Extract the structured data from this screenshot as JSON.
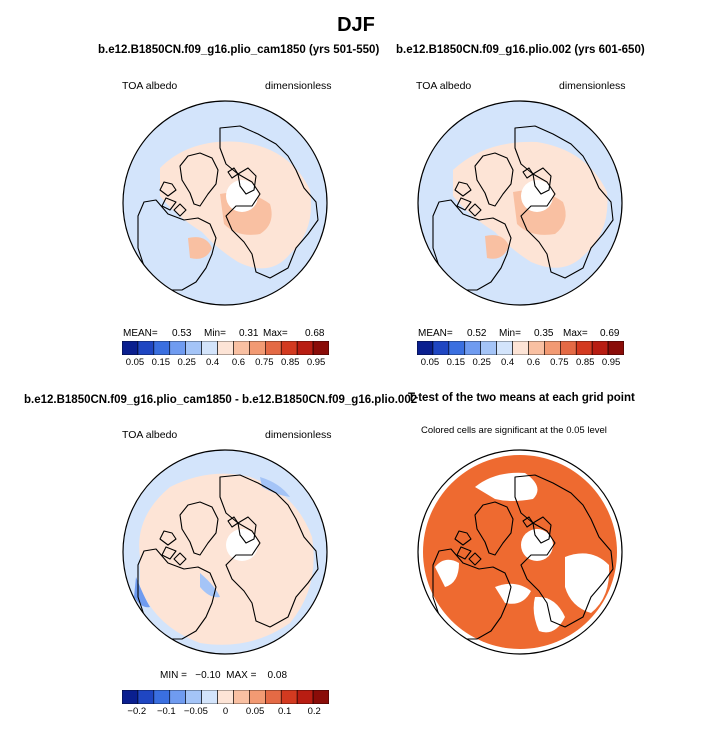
{
  "title": "DJF",
  "colors": {
    "palette": [
      "#0a1f8f",
      "#1f46c2",
      "#3a6fe0",
      "#6f9bf0",
      "#a4c4f7",
      "#d3e4fb",
      "#fde4d6",
      "#f9c0a2",
      "#f29a73",
      "#e46a45",
      "#d33a20",
      "#b81d12",
      "#8a0c08"
    ],
    "ocean": "#d3e4fb",
    "land_warm": "#fde4d6",
    "land_mid": "#f9c0a2",
    "significant": "#ee6a30",
    "hole": "#ffffff"
  },
  "panels": [
    {
      "title": "b.e12.B1850CN.f09_g16.plio_cam1850 (yrs 501-550)",
      "variable": "TOA albedo",
      "units": "dimensionless",
      "stats": {
        "mean_label": "MEAN=",
        "mean": "0.53",
        "min_label": "Min=",
        "min": "0.31",
        "max_label": "Max=",
        "max": "0.68"
      },
      "colorbar_ticks": [
        "0.05",
        "0.15",
        "0.25",
        "0.4",
        "0.6",
        "0.75",
        "0.85",
        "0.95"
      ]
    },
    {
      "title": "b.e12.B1850CN.f09_g16.plio.002 (yrs 601-650)",
      "variable": "TOA albedo",
      "units": "dimensionless",
      "stats": {
        "mean_label": "MEAN=",
        "mean": "0.52",
        "min_label": "Min=",
        "min": "0.35",
        "max_label": "Max=",
        "max": "0.69"
      },
      "colorbar_ticks": [
        "0.05",
        "0.15",
        "0.25",
        "0.4",
        "0.6",
        "0.75",
        "0.85",
        "0.95"
      ]
    },
    {
      "title": "b.e12.B1850CN.f09_g16.plio_cam1850 - b.e12.B1850CN.f09_g16.plio.002",
      "variable": "TOA albedo",
      "units": "dimensionless",
      "stats_text": "MIN =   −0.10  MAX =    0.08",
      "colorbar_ticks": [
        "−0.2",
        "−0.1",
        "−0.05",
        "0",
        "0.05",
        "0.1",
        "0.2"
      ]
    },
    {
      "title": "T-test of the two means at each grid point",
      "subtitle": "Colored cells are significant at the 0.05 level"
    }
  ],
  "chart_data": [
    {
      "type": "heatmap",
      "projection": "north polar stereographic",
      "title": "b.e12.B1850CN.f09_g16.plio_cam1850 (yrs 501-550)",
      "variable": "TOA albedo",
      "units": "dimensionless",
      "mean": 0.53,
      "min": 0.31,
      "max": 0.68,
      "levels": [
        0.05,
        0.1,
        0.15,
        0.2,
        0.25,
        0.3,
        0.4,
        0.5,
        0.6,
        0.7,
        0.75,
        0.8,
        0.85,
        0.9,
        0.95
      ]
    },
    {
      "type": "heatmap",
      "projection": "north polar stereographic",
      "title": "b.e12.B1850CN.f09_g16.plio.002 (yrs 601-650)",
      "variable": "TOA albedo",
      "units": "dimensionless",
      "mean": 0.52,
      "min": 0.35,
      "max": 0.69,
      "levels": [
        0.05,
        0.1,
        0.15,
        0.2,
        0.25,
        0.3,
        0.4,
        0.5,
        0.6,
        0.7,
        0.75,
        0.8,
        0.85,
        0.9,
        0.95
      ]
    },
    {
      "type": "heatmap",
      "projection": "north polar stereographic",
      "title": "b.e12.B1850CN.f09_g16.plio_cam1850 - b.e12.B1850CN.f09_g16.plio.002",
      "variable": "TOA albedo",
      "units": "dimensionless",
      "min": -0.1,
      "max": 0.08,
      "levels": [
        -0.2,
        -0.15,
        -0.1,
        -0.075,
        -0.05,
        -0.025,
        0,
        0.025,
        0.05,
        0.075,
        0.1,
        0.15,
        0.2
      ]
    },
    {
      "type": "heatmap",
      "projection": "north polar stereographic",
      "title": "T-test of the two means at each grid point",
      "subtitle": "Colored cells are significant at the 0.05 level",
      "significance_level": 0.05
    }
  ]
}
